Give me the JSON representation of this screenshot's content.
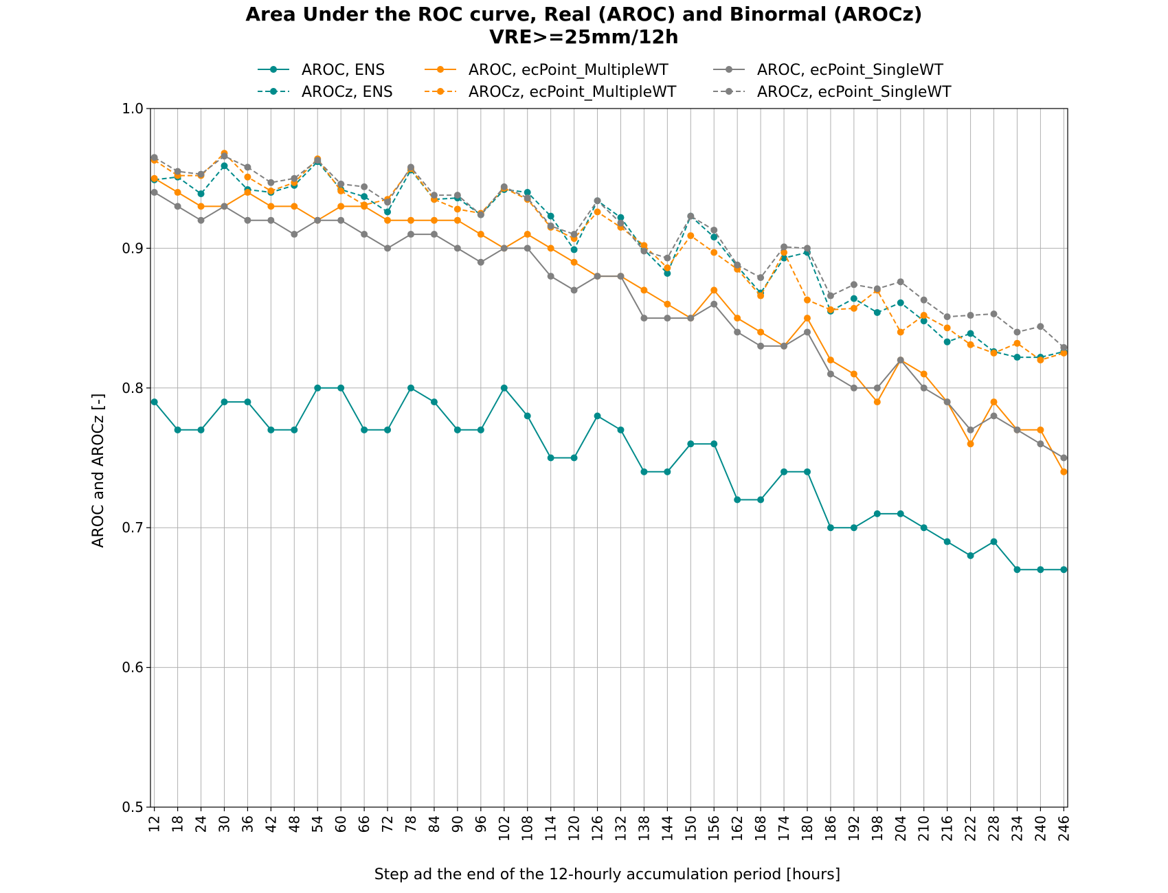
{
  "chart_data": {
    "type": "line",
    "title": "Area Under the ROC curve, Real (AROC) and Binormal (AROCz)",
    "subtitle": "VRE>=25mm/12h",
    "xlabel": "Step ad the end of the 12-hourly accumulation period [hours]",
    "ylabel": "AROC and AROCz [-]",
    "ylim": [
      0.5,
      1.0
    ],
    "yticks": [
      "0.5",
      "0.6",
      "0.7",
      "0.8",
      "0.9",
      "1.0"
    ],
    "grid": true,
    "legend_position": "top-center",
    "x": [
      12,
      18,
      24,
      30,
      36,
      42,
      48,
      54,
      60,
      66,
      72,
      78,
      84,
      90,
      96,
      102,
      108,
      114,
      120,
      126,
      132,
      138,
      144,
      150,
      156,
      162,
      168,
      174,
      180,
      186,
      192,
      198,
      204,
      210,
      216,
      222,
      228,
      234,
      240,
      246
    ],
    "series": [
      {
        "name": "AROC, ENS",
        "color": "#008B8B",
        "dash": false,
        "values": [
          0.79,
          0.77,
          0.77,
          0.79,
          0.79,
          0.77,
          0.77,
          0.8,
          0.8,
          0.77,
          0.77,
          0.8,
          0.79,
          0.77,
          0.77,
          0.8,
          0.78,
          0.75,
          0.75,
          0.78,
          0.77,
          0.74,
          0.74,
          0.76,
          0.76,
          0.72,
          0.72,
          0.74,
          0.74,
          0.7,
          0.7,
          0.71,
          0.71,
          0.7,
          0.69,
          0.68,
          0.69,
          0.67,
          0.67,
          0.67
        ]
      },
      {
        "name": "AROCz, ENS",
        "color": "#008B8B",
        "dash": true,
        "values": [
          0.949,
          0.951,
          0.939,
          0.959,
          0.942,
          0.94,
          0.945,
          0.962,
          0.942,
          0.937,
          0.926,
          0.956,
          0.935,
          0.936,
          0.924,
          0.942,
          0.94,
          0.923,
          0.899,
          0.934,
          0.922,
          0.899,
          0.882,
          0.923,
          0.908,
          0.887,
          0.868,
          0.893,
          0.897,
          0.855,
          0.864,
          0.854,
          0.861,
          0.848,
          0.833,
          0.839,
          0.826,
          0.822,
          0.822,
          0.826
        ]
      },
      {
        "name": "AROC, ecPoint_MultipleWT",
        "color": "#FF8C00",
        "dash": false,
        "values": [
          0.95,
          0.94,
          0.93,
          0.93,
          0.94,
          0.93,
          0.93,
          0.92,
          0.93,
          0.93,
          0.92,
          0.92,
          0.92,
          0.92,
          0.91,
          0.9,
          0.91,
          0.9,
          0.89,
          0.88,
          0.88,
          0.87,
          0.86,
          0.85,
          0.87,
          0.85,
          0.84,
          0.83,
          0.85,
          0.82,
          0.81,
          0.79,
          0.82,
          0.81,
          0.79,
          0.76,
          0.79,
          0.77,
          0.77,
          0.74
        ]
      },
      {
        "name": "AROCz, ecPoint_MultipleWT",
        "color": "#FF8C00",
        "dash": true,
        "values": [
          0.963,
          0.952,
          0.952,
          0.968,
          0.951,
          0.941,
          0.947,
          0.964,
          0.941,
          0.931,
          0.935,
          0.957,
          0.935,
          0.928,
          0.925,
          0.943,
          0.935,
          0.915,
          0.907,
          0.926,
          0.915,
          0.902,
          0.886,
          0.909,
          0.897,
          0.885,
          0.866,
          0.897,
          0.863,
          0.856,
          0.857,
          0.87,
          0.84,
          0.852,
          0.843,
          0.831,
          0.825,
          0.832,
          0.82,
          0.825
        ]
      },
      {
        "name": "AROC, ecPoint_SingleWT",
        "color": "#808080",
        "dash": false,
        "values": [
          0.94,
          0.93,
          0.92,
          0.93,
          0.92,
          0.92,
          0.91,
          0.92,
          0.92,
          0.91,
          0.9,
          0.91,
          0.91,
          0.9,
          0.89,
          0.9,
          0.9,
          0.88,
          0.87,
          0.88,
          0.88,
          0.85,
          0.85,
          0.85,
          0.86,
          0.84,
          0.83,
          0.83,
          0.84,
          0.81,
          0.8,
          0.8,
          0.82,
          0.8,
          0.79,
          0.77,
          0.78,
          0.77,
          0.76,
          0.75
        ]
      },
      {
        "name": "AROCz, ecPoint_SingleWT",
        "color": "#808080",
        "dash": true,
        "values": [
          0.965,
          0.955,
          0.953,
          0.966,
          0.958,
          0.947,
          0.95,
          0.963,
          0.946,
          0.944,
          0.933,
          0.958,
          0.938,
          0.938,
          0.924,
          0.944,
          0.936,
          0.916,
          0.91,
          0.934,
          0.918,
          0.898,
          0.893,
          0.923,
          0.913,
          0.888,
          0.879,
          0.901,
          0.9,
          0.866,
          0.874,
          0.871,
          0.876,
          0.863,
          0.851,
          0.852,
          0.853,
          0.84,
          0.844,
          0.829
        ]
      }
    ]
  }
}
